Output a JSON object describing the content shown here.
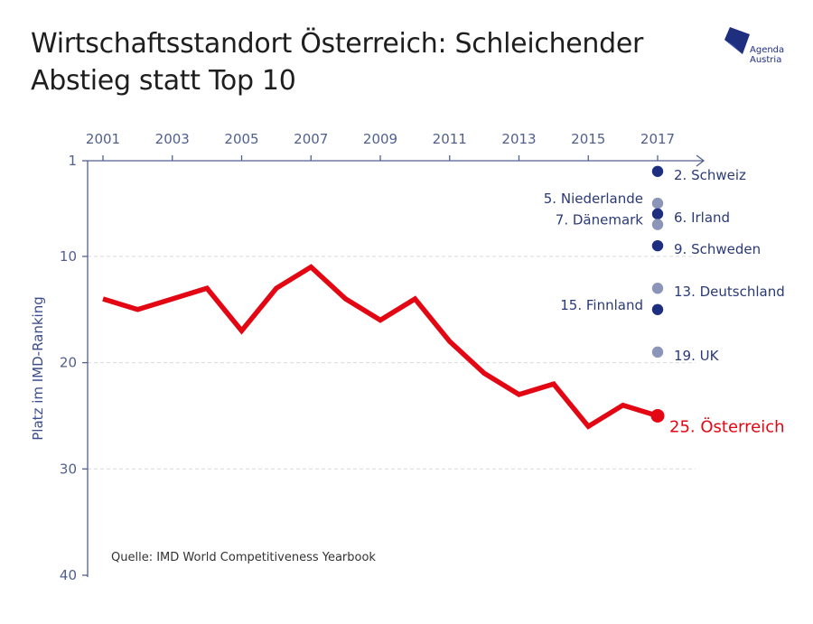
{
  "title": "Wirtschaftsstandort Österreich: Schleichender Abstieg statt Top 10",
  "logo": {
    "line1": "Agenda",
    "line2": "Austria"
  },
  "colors": {
    "axis": "#51608f",
    "line": "#e30613",
    "dot_dark": "#1f2f80",
    "dot_light": "#8a95b8",
    "grid": "#d9d9d9"
  },
  "chart_data": {
    "type": "line",
    "ylabel": "Platz im IMD-Ranking",
    "source": "Quelle: IMD World Competitiveness Yearbook",
    "y_inverted": true,
    "ylim": [
      1,
      40
    ],
    "y_ticks": [
      1,
      10,
      20,
      30,
      40
    ],
    "x_ticks": [
      2001,
      2003,
      2005,
      2007,
      2009,
      2011,
      2013,
      2015,
      2017
    ],
    "x_axis_position": "top",
    "series": [
      {
        "name": "Österreich",
        "x": [
          2001,
          2002,
          2003,
          2004,
          2005,
          2006,
          2007,
          2008,
          2009,
          2010,
          2011,
          2012,
          2013,
          2014,
          2015,
          2016,
          2017
        ],
        "y": [
          14,
          15,
          14,
          13,
          17,
          13,
          11,
          14,
          16,
          14,
          18,
          21,
          23,
          22,
          26,
          24,
          25
        ]
      }
    ],
    "comparison_2017": [
      {
        "label": "2. Schweiz",
        "rank": 2,
        "shade": "dark",
        "label_side": "right"
      },
      {
        "label": "5. Niederlande",
        "rank": 5,
        "shade": "light",
        "label_side": "left"
      },
      {
        "label": "6. Irland",
        "rank": 6,
        "shade": "dark",
        "label_side": "right"
      },
      {
        "label": "7. Dänemark",
        "rank": 7,
        "shade": "light",
        "label_side": "left"
      },
      {
        "label": "9. Schweden",
        "rank": 9,
        "shade": "dark",
        "label_side": "right"
      },
      {
        "label": "13. Deutschland",
        "rank": 13,
        "shade": "light",
        "label_side": "right"
      },
      {
        "label": "15. Finnland",
        "rank": 15,
        "shade": "dark",
        "label_side": "left"
      },
      {
        "label": "19. UK",
        "rank": 19,
        "shade": "light",
        "label_side": "right"
      }
    ],
    "highlight_label": "25. Österreich",
    "grid": true
  }
}
